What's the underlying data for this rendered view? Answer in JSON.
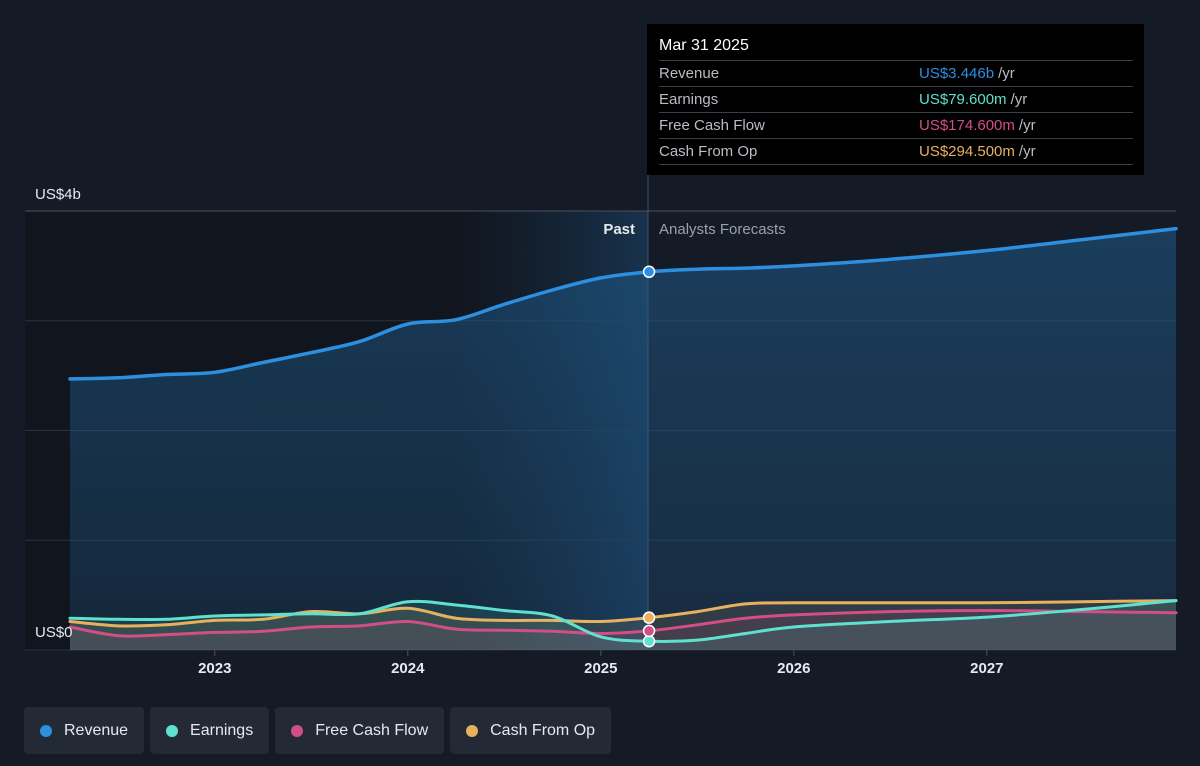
{
  "chart_data": {
    "type": "line",
    "y_axis": {
      "top_label": "US$4b",
      "bottom_label": "US$0",
      "ylim": [
        0,
        4
      ],
      "unit": "US$ billions"
    },
    "x_axis": {
      "ticks": [
        "2023",
        "2024",
        "2025",
        "2026",
        "2027"
      ],
      "xlim": [
        2022.25,
        2027.98
      ]
    },
    "sections": {
      "past_label": "Past",
      "forecast_label": "Analysts Forecasts",
      "divider_x": 2025.25
    },
    "series": [
      {
        "name": "Revenue",
        "color": "#2d8fe0",
        "x": [
          2022.25,
          2022.5,
          2022.75,
          2023.0,
          2023.25,
          2023.5,
          2023.75,
          2024.0,
          2024.25,
          2024.5,
          2024.75,
          2025.0,
          2025.25,
          2025.5,
          2025.75,
          2026.0,
          2026.5,
          2027.0,
          2027.5,
          2027.98
        ],
        "values": [
          2.47,
          2.48,
          2.51,
          2.53,
          2.62,
          2.71,
          2.81,
          2.97,
          3.01,
          3.15,
          3.28,
          3.39,
          3.446,
          3.47,
          3.48,
          3.5,
          3.56,
          3.64,
          3.74,
          3.84
        ]
      },
      {
        "name": "Earnings",
        "color": "#5ee1cf",
        "x": [
          2022.25,
          2022.5,
          2022.75,
          2023.0,
          2023.25,
          2023.5,
          2023.75,
          2024.0,
          2024.25,
          2024.5,
          2024.75,
          2025.0,
          2025.25,
          2025.5,
          2025.75,
          2026.0,
          2026.5,
          2027.0,
          2027.5,
          2027.98
        ],
        "values": [
          0.29,
          0.28,
          0.28,
          0.31,
          0.32,
          0.33,
          0.33,
          0.44,
          0.41,
          0.36,
          0.31,
          0.12,
          0.0796,
          0.09,
          0.15,
          0.21,
          0.26,
          0.3,
          0.37,
          0.45
        ]
      },
      {
        "name": "Free Cash Flow",
        "color": "#d24f86",
        "x": [
          2022.25,
          2022.5,
          2022.75,
          2023.0,
          2023.25,
          2023.5,
          2023.75,
          2024.0,
          2024.25,
          2024.5,
          2024.75,
          2025.0,
          2025.25,
          2025.5,
          2025.75,
          2026.0,
          2026.5,
          2027.0,
          2027.5,
          2027.98
        ],
        "values": [
          0.21,
          0.13,
          0.14,
          0.16,
          0.17,
          0.21,
          0.22,
          0.26,
          0.19,
          0.18,
          0.17,
          0.15,
          0.1746,
          0.23,
          0.29,
          0.32,
          0.35,
          0.36,
          0.35,
          0.34
        ]
      },
      {
        "name": "Cash From Op",
        "color": "#e8b160",
        "x": [
          2022.25,
          2022.5,
          2022.75,
          2023.0,
          2023.25,
          2023.5,
          2023.75,
          2024.0,
          2024.25,
          2024.5,
          2024.75,
          2025.0,
          2025.25,
          2025.5,
          2025.75,
          2026.0,
          2026.5,
          2027.0,
          2027.5,
          2027.98
        ],
        "values": [
          0.26,
          0.22,
          0.23,
          0.27,
          0.28,
          0.35,
          0.33,
          0.38,
          0.29,
          0.27,
          0.27,
          0.26,
          0.2945,
          0.35,
          0.42,
          0.43,
          0.43,
          0.43,
          0.44,
          0.45
        ]
      }
    ],
    "highlight": {
      "x": 2025.25
    }
  },
  "tooltip": {
    "date": "Mar 31 2025",
    "rows": [
      {
        "label": "Revenue",
        "value": "US$3.446b",
        "unit": "/yr",
        "color": "#2d8fe0"
      },
      {
        "label": "Earnings",
        "value": "US$79.600m",
        "unit": "/yr",
        "color": "#5ee1cf"
      },
      {
        "label": "Free Cash Flow",
        "value": "US$174.600m",
        "unit": "/yr",
        "color": "#d24f86"
      },
      {
        "label": "Cash From Op",
        "value": "US$294.500m",
        "unit": "/yr",
        "color": "#e8b160"
      }
    ]
  },
  "legend": [
    {
      "label": "Revenue",
      "color": "#2d8fe0"
    },
    {
      "label": "Earnings",
      "color": "#5ee1cf"
    },
    {
      "label": "Free Cash Flow",
      "color": "#d24f86"
    },
    {
      "label": "Cash From Op",
      "color": "#e8b160"
    }
  ]
}
